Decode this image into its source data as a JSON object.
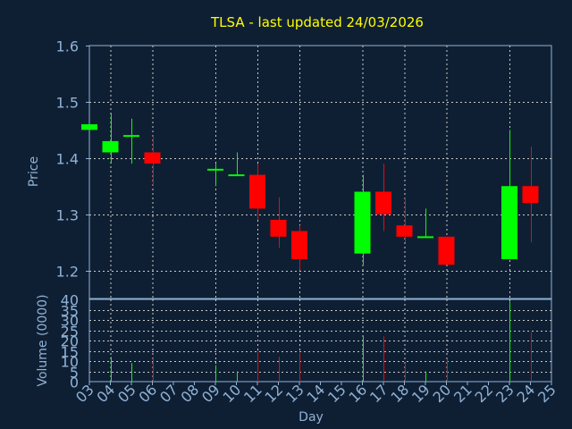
{
  "chart_data": {
    "type": "candlestick",
    "title": "TLSA - last updated 24/03/2026",
    "xlabel": "Day",
    "price_panel": {
      "ylabel": "Price",
      "ylim": [
        1.15,
        1.6
      ],
      "yticks": [
        "1.2",
        "1.3",
        "1.4",
        "1.5",
        "1.6"
      ],
      "ytick_values": [
        1.2,
        1.3,
        1.4,
        1.5,
        1.6
      ]
    },
    "volume_panel": {
      "ylabel": "Volume (0000)",
      "ylim": [
        0,
        40
      ],
      "yticks": [
        "0",
        "5",
        "10",
        "15",
        "20",
        "25",
        "30",
        "35",
        "40"
      ],
      "ytick_values": [
        0,
        5,
        10,
        15,
        20,
        25,
        30,
        35,
        40
      ]
    },
    "x_start_day": 3,
    "x_labels": [
      "03",
      "04",
      "05",
      "06",
      "07",
      "08",
      "09",
      "10",
      "11",
      "12",
      "13",
      "14",
      "15",
      "16",
      "17",
      "18",
      "19",
      "20",
      "21",
      "22",
      "23",
      "24",
      "25"
    ],
    "grid_day_labels": [
      "04",
      "06",
      "09",
      "11",
      "13",
      "16",
      "18",
      "20",
      "23"
    ],
    "candles": [
      {
        "day": "03",
        "open": 1.45,
        "high": 1.46,
        "low": 1.45,
        "close": 1.46,
        "volume": 0
      },
      {
        "day": "04",
        "open": 1.41,
        "high": 1.48,
        "low": 1.39,
        "close": 1.43,
        "volume": 12
      },
      {
        "day": "05",
        "open": 1.44,
        "high": 1.47,
        "low": 1.39,
        "close": 1.44,
        "volume": 9
      },
      {
        "day": "06",
        "open": 1.41,
        "high": 1.44,
        "low": 1.35,
        "close": 1.39,
        "volume": 12
      },
      {
        "day": "09",
        "open": 1.38,
        "high": 1.39,
        "low": 1.35,
        "close": 1.38,
        "volume": 8
      },
      {
        "day": "10",
        "open": 1.37,
        "high": 1.41,
        "low": 1.37,
        "close": 1.37,
        "volume": 5
      },
      {
        "day": "11",
        "open": 1.37,
        "high": 1.39,
        "low": 1.29,
        "close": 1.31,
        "volume": 15
      },
      {
        "day": "12",
        "open": 1.29,
        "high": 1.33,
        "low": 1.24,
        "close": 1.26,
        "volume": 12
      },
      {
        "day": "13",
        "open": 1.27,
        "high": 1.28,
        "low": 1.2,
        "close": 1.22,
        "volume": 14
      },
      {
        "day": "16",
        "open": 1.23,
        "high": 1.37,
        "low": 1.21,
        "close": 1.34,
        "volume": 22
      },
      {
        "day": "17",
        "open": 1.34,
        "high": 1.39,
        "low": 1.27,
        "close": 1.3,
        "volume": 22
      },
      {
        "day": "18",
        "open": 1.28,
        "high": 1.33,
        "low": 1.25,
        "close": 1.26,
        "volume": 9
      },
      {
        "day": "19",
        "open": 1.26,
        "high": 1.31,
        "low": 1.26,
        "close": 1.26,
        "volume": 5
      },
      {
        "day": "20",
        "open": 1.26,
        "high": 1.26,
        "low": 1.21,
        "close": 1.21,
        "volume": 11
      },
      {
        "day": "23",
        "open": 1.22,
        "high": 1.45,
        "low": 1.22,
        "close": 1.35,
        "volume": 39
      },
      {
        "day": "24",
        "open": 1.35,
        "high": 1.42,
        "low": 1.25,
        "close": 1.32,
        "volume": 24
      }
    ],
    "colors": {
      "background": "#0f1f33",
      "plot_background": "#0f1f33",
      "axis": "#8fb2d6",
      "grid": "#c8c8c8",
      "title": "#ffff00",
      "label": "#8fb2d6",
      "up": "#00ff00",
      "down": "#ff0000"
    },
    "grid": true
  }
}
